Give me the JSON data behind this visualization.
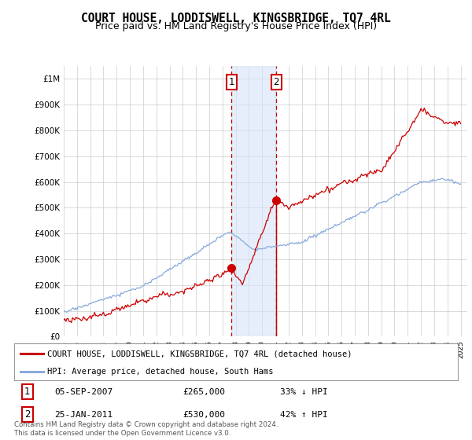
{
  "title": "COURT HOUSE, LODDISWELL, KINGSBRIDGE, TQ7 4RL",
  "subtitle": "Price paid vs. HM Land Registry's House Price Index (HPI)",
  "title_fontsize": 10.5,
  "subtitle_fontsize": 9,
  "ylim": [
    0,
    1050000
  ],
  "yticks": [
    0,
    100000,
    200000,
    300000,
    400000,
    500000,
    600000,
    700000,
    800000,
    900000,
    1000000
  ],
  "ytick_labels": [
    "£0",
    "£100K",
    "£200K",
    "£300K",
    "£400K",
    "£500K",
    "£600K",
    "£700K",
    "£800K",
    "£900K",
    "£1M"
  ],
  "xlim_start": 1995.0,
  "xlim_end": 2025.5,
  "transaction1_date": 2007.68,
  "transaction1_price": 265000,
  "transaction2_date": 2011.07,
  "transaction2_price": 530000,
  "shade_color": "#d4e4f7",
  "shade_alpha": 0.6,
  "hpi_line_color": "#88aadd",
  "price_line_color": "#cc0000",
  "vline_color": "#cc0000",
  "legend_price_label": "COURT HOUSE, LODDISWELL, KINGSBRIDGE, TQ7 4RL (detached house)",
  "legend_hpi_label": "HPI: Average price, detached house, South Hams",
  "footnote": "Contains HM Land Registry data © Crown copyright and database right 2024.\nThis data is licensed under the Open Government Licence v3.0.",
  "background_color": "#ffffff",
  "grid_color": "#cccccc",
  "hpi_seed": 10,
  "price_seed": 20,
  "box_edge_color": "#cc0000"
}
